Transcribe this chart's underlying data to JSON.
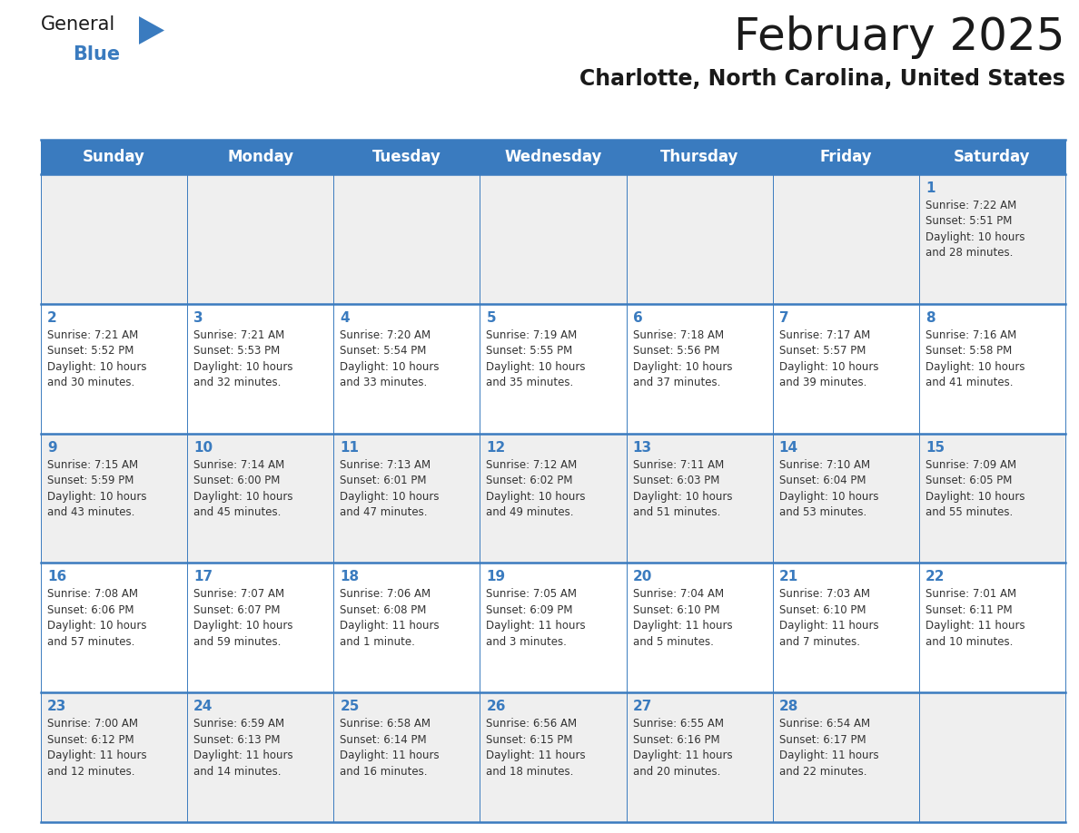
{
  "title": "February 2025",
  "subtitle": "Charlotte, North Carolina, United States",
  "header_color": "#3a7bbf",
  "header_text_color": "#ffffff",
  "cell_bg_even": "#efefef",
  "cell_bg_odd": "#ffffff",
  "day_number_color": "#3a7bbf",
  "info_text_color": "#333333",
  "border_color": "#3a7bbf",
  "days_of_week": [
    "Sunday",
    "Monday",
    "Tuesday",
    "Wednesday",
    "Thursday",
    "Friday",
    "Saturday"
  ],
  "weeks": [
    [
      null,
      null,
      null,
      null,
      null,
      null,
      1
    ],
    [
      2,
      3,
      4,
      5,
      6,
      7,
      8
    ],
    [
      9,
      10,
      11,
      12,
      13,
      14,
      15
    ],
    [
      16,
      17,
      18,
      19,
      20,
      21,
      22
    ],
    [
      23,
      24,
      25,
      26,
      27,
      28,
      null
    ]
  ],
  "cell_data": {
    "1": {
      "sunrise": "7:22 AM",
      "sunset": "5:51 PM",
      "daylight": "10 hours",
      "daylight2": "and 28 minutes."
    },
    "2": {
      "sunrise": "7:21 AM",
      "sunset": "5:52 PM",
      "daylight": "10 hours",
      "daylight2": "and 30 minutes."
    },
    "3": {
      "sunrise": "7:21 AM",
      "sunset": "5:53 PM",
      "daylight": "10 hours",
      "daylight2": "and 32 minutes."
    },
    "4": {
      "sunrise": "7:20 AM",
      "sunset": "5:54 PM",
      "daylight": "10 hours",
      "daylight2": "and 33 minutes."
    },
    "5": {
      "sunrise": "7:19 AM",
      "sunset": "5:55 PM",
      "daylight": "10 hours",
      "daylight2": "and 35 minutes."
    },
    "6": {
      "sunrise": "7:18 AM",
      "sunset": "5:56 PM",
      "daylight": "10 hours",
      "daylight2": "and 37 minutes."
    },
    "7": {
      "sunrise": "7:17 AM",
      "sunset": "5:57 PM",
      "daylight": "10 hours",
      "daylight2": "and 39 minutes."
    },
    "8": {
      "sunrise": "7:16 AM",
      "sunset": "5:58 PM",
      "daylight": "10 hours",
      "daylight2": "and 41 minutes."
    },
    "9": {
      "sunrise": "7:15 AM",
      "sunset": "5:59 PM",
      "daylight": "10 hours",
      "daylight2": "and 43 minutes."
    },
    "10": {
      "sunrise": "7:14 AM",
      "sunset": "6:00 PM",
      "daylight": "10 hours",
      "daylight2": "and 45 minutes."
    },
    "11": {
      "sunrise": "7:13 AM",
      "sunset": "6:01 PM",
      "daylight": "10 hours",
      "daylight2": "and 47 minutes."
    },
    "12": {
      "sunrise": "7:12 AM",
      "sunset": "6:02 PM",
      "daylight": "10 hours",
      "daylight2": "and 49 minutes."
    },
    "13": {
      "sunrise": "7:11 AM",
      "sunset": "6:03 PM",
      "daylight": "10 hours",
      "daylight2": "and 51 minutes."
    },
    "14": {
      "sunrise": "7:10 AM",
      "sunset": "6:04 PM",
      "daylight": "10 hours",
      "daylight2": "and 53 minutes."
    },
    "15": {
      "sunrise": "7:09 AM",
      "sunset": "6:05 PM",
      "daylight": "10 hours",
      "daylight2": "and 55 minutes."
    },
    "16": {
      "sunrise": "7:08 AM",
      "sunset": "6:06 PM",
      "daylight": "10 hours",
      "daylight2": "and 57 minutes."
    },
    "17": {
      "sunrise": "7:07 AM",
      "sunset": "6:07 PM",
      "daylight": "10 hours",
      "daylight2": "and 59 minutes."
    },
    "18": {
      "sunrise": "7:06 AM",
      "sunset": "6:08 PM",
      "daylight": "11 hours",
      "daylight2": "and 1 minute."
    },
    "19": {
      "sunrise": "7:05 AM",
      "sunset": "6:09 PM",
      "daylight": "11 hours",
      "daylight2": "and 3 minutes."
    },
    "20": {
      "sunrise": "7:04 AM",
      "sunset": "6:10 PM",
      "daylight": "11 hours",
      "daylight2": "and 5 minutes."
    },
    "21": {
      "sunrise": "7:03 AM",
      "sunset": "6:10 PM",
      "daylight": "11 hours",
      "daylight2": "and 7 minutes."
    },
    "22": {
      "sunrise": "7:01 AM",
      "sunset": "6:11 PM",
      "daylight": "11 hours",
      "daylight2": "and 10 minutes."
    },
    "23": {
      "sunrise": "7:00 AM",
      "sunset": "6:12 PM",
      "daylight": "11 hours",
      "daylight2": "and 12 minutes."
    },
    "24": {
      "sunrise": "6:59 AM",
      "sunset": "6:13 PM",
      "daylight": "11 hours",
      "daylight2": "and 14 minutes."
    },
    "25": {
      "sunrise": "6:58 AM",
      "sunset": "6:14 PM",
      "daylight": "11 hours",
      "daylight2": "and 16 minutes."
    },
    "26": {
      "sunrise": "6:56 AM",
      "sunset": "6:15 PM",
      "daylight": "11 hours",
      "daylight2": "and 18 minutes."
    },
    "27": {
      "sunrise": "6:55 AM",
      "sunset": "6:16 PM",
      "daylight": "11 hours",
      "daylight2": "and 20 minutes."
    },
    "28": {
      "sunrise": "6:54 AM",
      "sunset": "6:17 PM",
      "daylight": "11 hours",
      "daylight2": "and 22 minutes."
    }
  },
  "fig_width": 11.88,
  "fig_height": 9.18,
  "dpi": 100
}
